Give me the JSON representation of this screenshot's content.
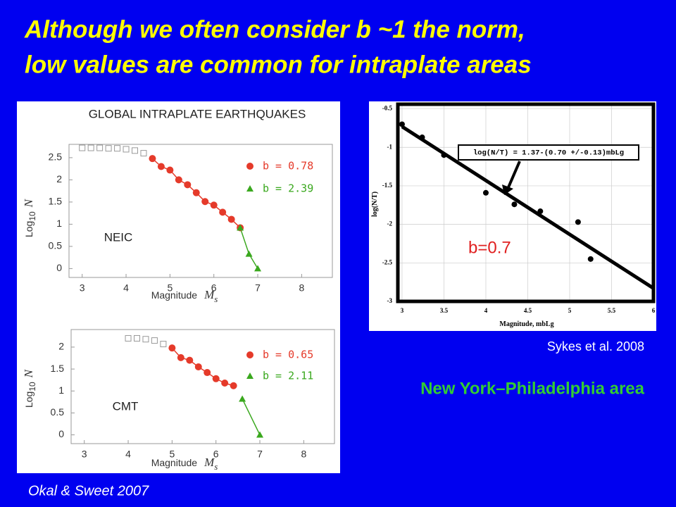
{
  "slide": {
    "title_lines": [
      "Although we often consider b ~1 the norm,",
      "low values are common for intraplate areas"
    ],
    "panel_title": "GLOBAL INTRAPLATE EARTHQUAKES",
    "left_credit": "Okal & Sweet 2007",
    "right_credit": "Sykes et al. 2008",
    "region": "New York–Philadelphia area"
  },
  "chart_data": [
    {
      "type": "scatter",
      "label": "NEIC",
      "x_label": "Magnitude",
      "x_symbol": "M",
      "x_symbol_sub": "s",
      "y_label": "Log",
      "y_label_sub": "10",
      "y_symbol": "N",
      "xlim": [
        2.7,
        8.7
      ],
      "xticks": [
        3,
        4,
        5,
        6,
        7,
        8
      ],
      "ylim": [
        -0.2,
        2.8
      ],
      "yticks": [
        0,
        0.5,
        1,
        1.5,
        2,
        2.5
      ],
      "grid": false,
      "series": [
        {
          "color": "#999999",
          "marker": "square",
          "x": [
            3,
            3.2,
            3.4,
            3.6,
            3.8,
            4.0,
            4.2,
            4.4
          ],
          "values": [
            2.72,
            2.72,
            2.72,
            2.71,
            2.71,
            2.69,
            2.66,
            2.6
          ]
        },
        {
          "name": "b = 0.78",
          "color": "#e53a2a",
          "marker": "circle",
          "line": true,
          "x": [
            4.6,
            4.8,
            5.0,
            5.2,
            5.4,
            5.6,
            5.8,
            6.0,
            6.2,
            6.4,
            6.6
          ],
          "values": [
            2.48,
            2.3,
            2.22,
            2.0,
            1.89,
            1.71,
            1.51,
            1.43,
            1.27,
            1.11,
            0.92
          ]
        },
        {
          "name": "b = 2.39",
          "color": "#3aa81e",
          "marker": "triangle",
          "line": true,
          "x": [
            6.6,
            6.8,
            7.0
          ],
          "values": [
            0.92,
            0.33,
            0
          ]
        }
      ]
    },
    {
      "type": "scatter",
      "label": "CMT",
      "x_label": "Magnitude",
      "x_symbol": "M",
      "x_symbol_sub": "s",
      "y_label": "Log",
      "y_label_sub": "10",
      "y_symbol": "N",
      "xlim": [
        2.7,
        8.7
      ],
      "xticks": [
        3,
        4,
        5,
        6,
        7,
        8
      ],
      "ylim": [
        -0.2,
        2.4
      ],
      "yticks": [
        0,
        0.5,
        1,
        1.5,
        2
      ],
      "grid": false,
      "series": [
        {
          "color": "#999999",
          "marker": "square",
          "x": [
            4.0,
            4.2,
            4.4,
            4.6,
            4.8
          ],
          "values": [
            2.2,
            2.2,
            2.18,
            2.15,
            2.07
          ]
        },
        {
          "name": "b = 0.65",
          "color": "#e53a2a",
          "marker": "circle",
          "line": true,
          "x": [
            5.0,
            5.2,
            5.4,
            5.6,
            5.8,
            6.0,
            6.2,
            6.4
          ],
          "values": [
            1.98,
            1.76,
            1.7,
            1.55,
            1.42,
            1.28,
            1.18,
            1.12
          ]
        },
        {
          "name": "b = 2.11",
          "color": "#3aa81e",
          "marker": "triangle",
          "line": true,
          "x": [
            6.6,
            7.0
          ],
          "values": [
            0.82,
            0
          ]
        }
      ]
    },
    {
      "type": "scatter",
      "annotation": "log(N/T) = 1.37-(0.70 +/-0.13)mbLg",
      "b_label": "b=0.7",
      "x_label": "Magnitude, mbLg",
      "y_label": "log(N/T)",
      "xlim": [
        2.95,
        6
      ],
      "xticks": [
        3,
        3.5,
        4,
        4.5,
        5,
        5.5,
        6
      ],
      "ylim": [
        -3,
        -0.44
      ],
      "yticks": [
        -0.5,
        -1,
        -1.5,
        -2,
        -2.5,
        -3
      ],
      "grid": true,
      "series": [
        {
          "color": "#000000",
          "marker": "circle",
          "x": [
            3.0,
            3.24,
            3.5,
            4.0,
            4.34,
            4.65,
            5.1,
            5.25
          ],
          "values": [
            -0.7,
            -0.87,
            -1.1,
            -1.59,
            -1.74,
            -1.83,
            -1.97,
            -2.45
          ]
        },
        {
          "color": "#000000",
          "marker": "none",
          "line": true,
          "x": [
            3,
            6
          ],
          "values": [
            -0.73,
            -2.83
          ]
        }
      ]
    }
  ]
}
